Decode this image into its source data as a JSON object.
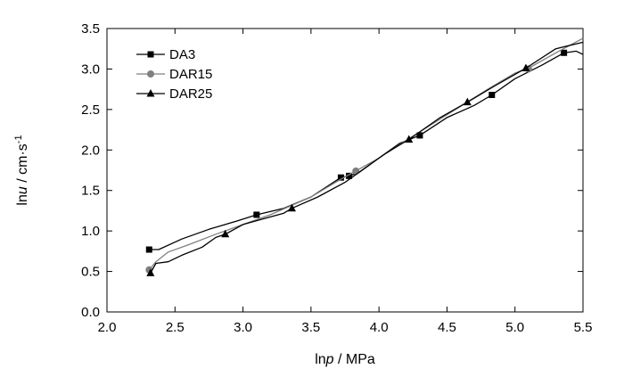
{
  "chart_data": {
    "type": "line",
    "xlabel": {
      "prefix": "ln",
      "var": "p",
      "suffix": " / MPa"
    },
    "ylabel": {
      "prefix": "ln",
      "var": "u",
      "suffix": " / cm·s",
      "sup": "-1"
    },
    "xlim": [
      2.0,
      5.5
    ],
    "ylim": [
      0.0,
      3.5
    ],
    "xticks": [
      "2.0",
      "2.5",
      "3.0",
      "3.5",
      "4.0",
      "4.5",
      "5.0",
      "5.5"
    ],
    "yticks": [
      "0.0",
      "0.5",
      "1.0",
      "1.5",
      "2.0",
      "2.5",
      "3.0",
      "3.5"
    ],
    "grid": false,
    "legend_position": "top-left",
    "series": [
      {
        "name": "DA3",
        "color": "#000000",
        "marker": "square",
        "x": [
          2.31,
          2.38,
          2.55,
          2.75,
          2.95,
          3.1,
          3.3,
          3.5,
          3.72,
          3.78,
          3.85,
          4.0,
          4.15,
          4.3,
          4.5,
          4.7,
          4.83,
          5.0,
          5.2,
          5.36,
          5.45,
          5.5
        ],
        "y": [
          0.77,
          0.77,
          0.9,
          1.02,
          1.12,
          1.2,
          1.28,
          1.42,
          1.66,
          1.68,
          1.72,
          1.9,
          2.08,
          2.18,
          2.4,
          2.55,
          2.68,
          2.88,
          3.05,
          3.2,
          3.22,
          3.18
        ],
        "markers": [
          [
            2.31,
            0.77
          ],
          [
            3.1,
            1.2
          ],
          [
            3.72,
            1.66
          ],
          [
            3.78,
            1.68
          ],
          [
            4.3,
            2.18
          ],
          [
            4.83,
            2.68
          ],
          [
            5.36,
            3.2
          ]
        ]
      },
      {
        "name": "DAR15",
        "color": "#7f7f7f",
        "marker": "circle",
        "x": [
          2.31,
          2.36,
          2.45,
          2.6,
          2.8,
          3.0,
          3.2,
          3.5,
          3.7,
          3.85,
          4.0,
          4.2,
          4.4,
          4.6,
          4.8,
          5.0,
          5.1,
          5.3,
          5.5
        ],
        "y": [
          0.52,
          0.62,
          0.74,
          0.83,
          0.96,
          1.08,
          1.2,
          1.42,
          1.62,
          1.76,
          1.9,
          2.12,
          2.33,
          2.54,
          2.75,
          2.95,
          3.01,
          3.2,
          3.38
        ],
        "markers": [
          [
            2.31,
            0.52
          ],
          [
            3.83,
            1.74
          ],
          [
            5.1,
            3.0
          ]
        ]
      },
      {
        "name": "DAR25",
        "color": "#000000",
        "marker": "triangle",
        "x": [
          2.32,
          2.36,
          2.45,
          2.55,
          2.7,
          2.8,
          2.87,
          3.0,
          3.15,
          3.3,
          3.36,
          3.55,
          3.75,
          3.9,
          4.05,
          4.22,
          4.45,
          4.65,
          4.85,
          5.08,
          5.3,
          5.5
        ],
        "y": [
          0.48,
          0.6,
          0.62,
          0.7,
          0.8,
          0.92,
          0.96,
          1.08,
          1.15,
          1.22,
          1.28,
          1.42,
          1.6,
          1.78,
          1.96,
          2.13,
          2.4,
          2.59,
          2.79,
          3.01,
          3.25,
          3.33
        ],
        "markers": [
          [
            2.32,
            0.48
          ],
          [
            2.87,
            0.96
          ],
          [
            3.36,
            1.28
          ],
          [
            4.22,
            2.13
          ],
          [
            4.65,
            2.59
          ],
          [
            5.08,
            3.01
          ]
        ]
      }
    ]
  }
}
